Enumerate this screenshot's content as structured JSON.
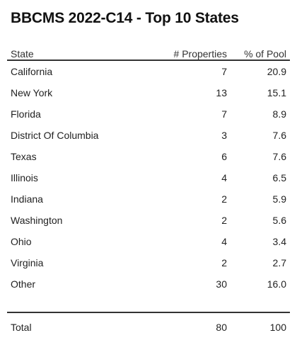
{
  "chart_data": {
    "type": "table",
    "title": "BBCMS 2022-C14 - Top 10 States",
    "columns": [
      "State",
      "# Properties",
      "% of Pool"
    ],
    "rows": [
      {
        "state": "California",
        "properties": "7",
        "pool": "20.9"
      },
      {
        "state": "New York",
        "properties": "13",
        "pool": "15.1"
      },
      {
        "state": "Florida",
        "properties": "7",
        "pool": "8.9"
      },
      {
        "state": "District Of Columbia",
        "properties": "3",
        "pool": "7.6"
      },
      {
        "state": "Texas",
        "properties": "6",
        "pool": "7.6"
      },
      {
        "state": "Illinois",
        "properties": "4",
        "pool": "6.5"
      },
      {
        "state": "Indiana",
        "properties": "2",
        "pool": "5.9"
      },
      {
        "state": "Washington",
        "properties": "2",
        "pool": "5.6"
      },
      {
        "state": "Ohio",
        "properties": "4",
        "pool": "3.4"
      },
      {
        "state": "Virginia",
        "properties": "2",
        "pool": "2.7"
      },
      {
        "state": "Other",
        "properties": "30",
        "pool": "16.0"
      }
    ],
    "total": {
      "label": "Total",
      "properties": "80",
      "pool": "100"
    }
  }
}
